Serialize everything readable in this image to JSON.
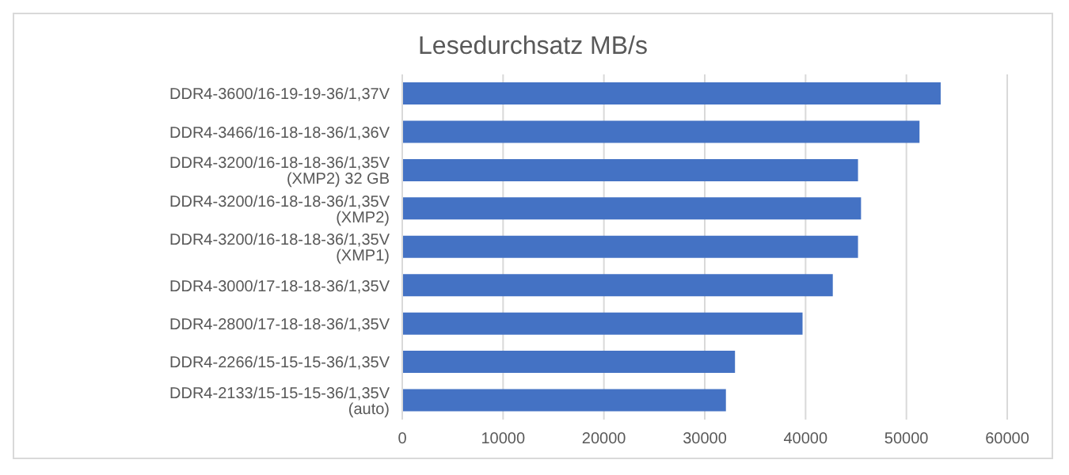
{
  "chart_data": {
    "type": "bar",
    "orientation": "horizontal",
    "title": "Lesedurchsatz MB/s",
    "categories": [
      "DDR4-3600/16-19-19-36/1,37V",
      "DDR4-3466/16-18-18-36/1,36V",
      "DDR4-3200/16-18-18-36/1,35V (XMP2) 32 GB",
      "DDR4-3200/16-18-18-36/1,35V (XMP2)",
      "DDR4-3200/16-18-18-36/1,35V (XMP1)",
      "DDR4-3000/17-18-18-36/1,35V",
      "DDR4-2800/17-18-18-36/1,35V",
      "DDR4-2266/15-15-15-36/1,35V",
      "DDR4-2133/15-15-15-36/1,35V (auto)"
    ],
    "values": [
      53400,
      51300,
      45200,
      45500,
      45200,
      42700,
      39700,
      33000,
      32100
    ],
    "color": "#4472c4",
    "xlim": [
      0,
      60000
    ],
    "xticks": [
      0,
      10000,
      20000,
      30000,
      40000,
      50000,
      60000
    ],
    "grid": "x"
  }
}
